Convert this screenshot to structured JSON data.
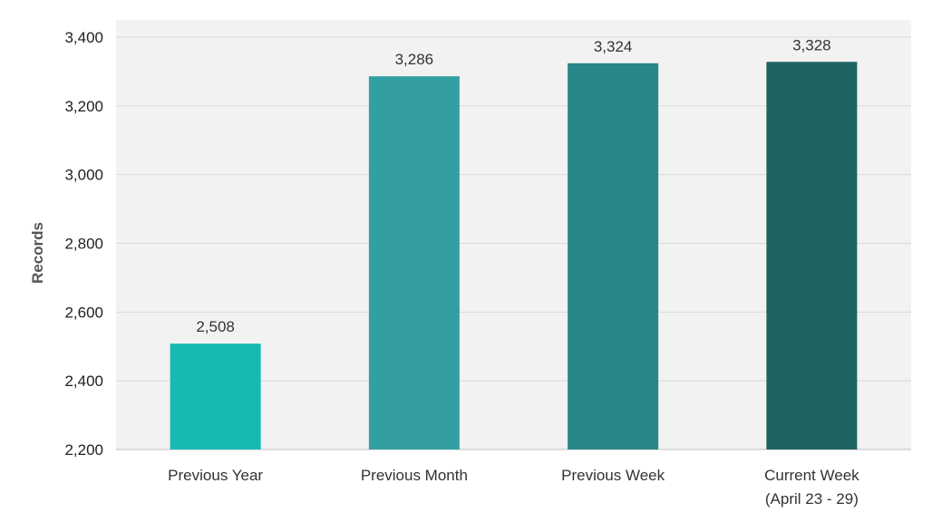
{
  "chart_data": {
    "type": "bar",
    "title": "",
    "xlabel": "",
    "ylabel": "Records",
    "categories": [
      "Previous Year",
      "Previous Month",
      "Previous Week",
      "Current Week (April 23 - 29)"
    ],
    "category_lines": [
      [
        "Previous Year"
      ],
      [
        "Previous Month"
      ],
      [
        "Previous Week"
      ],
      [
        "Current Week",
        "(April 23 - 29)"
      ]
    ],
    "values": [
      2508,
      3286,
      3324,
      3328
    ],
    "value_labels": [
      "2,508",
      "3,286",
      "3,324",
      "3,328"
    ],
    "bar_colors": [
      "#17b9b2",
      "#339fa2",
      "#29878a",
      "#1d6461"
    ],
    "ylim": [
      2200,
      3450
    ],
    "yticks": [
      2200,
      2400,
      2600,
      2800,
      3000,
      3200,
      3400
    ],
    "ytick_labels": [
      "2,200",
      "2,400",
      "2,600",
      "2,800",
      "3,000",
      "3,200",
      "3,400"
    ],
    "grid": true,
    "legend": "none",
    "colors": {
      "plot_background": "#f2f2f2",
      "gridline": "#d9d9d9",
      "axis_line": "#bfbfbf"
    }
  }
}
